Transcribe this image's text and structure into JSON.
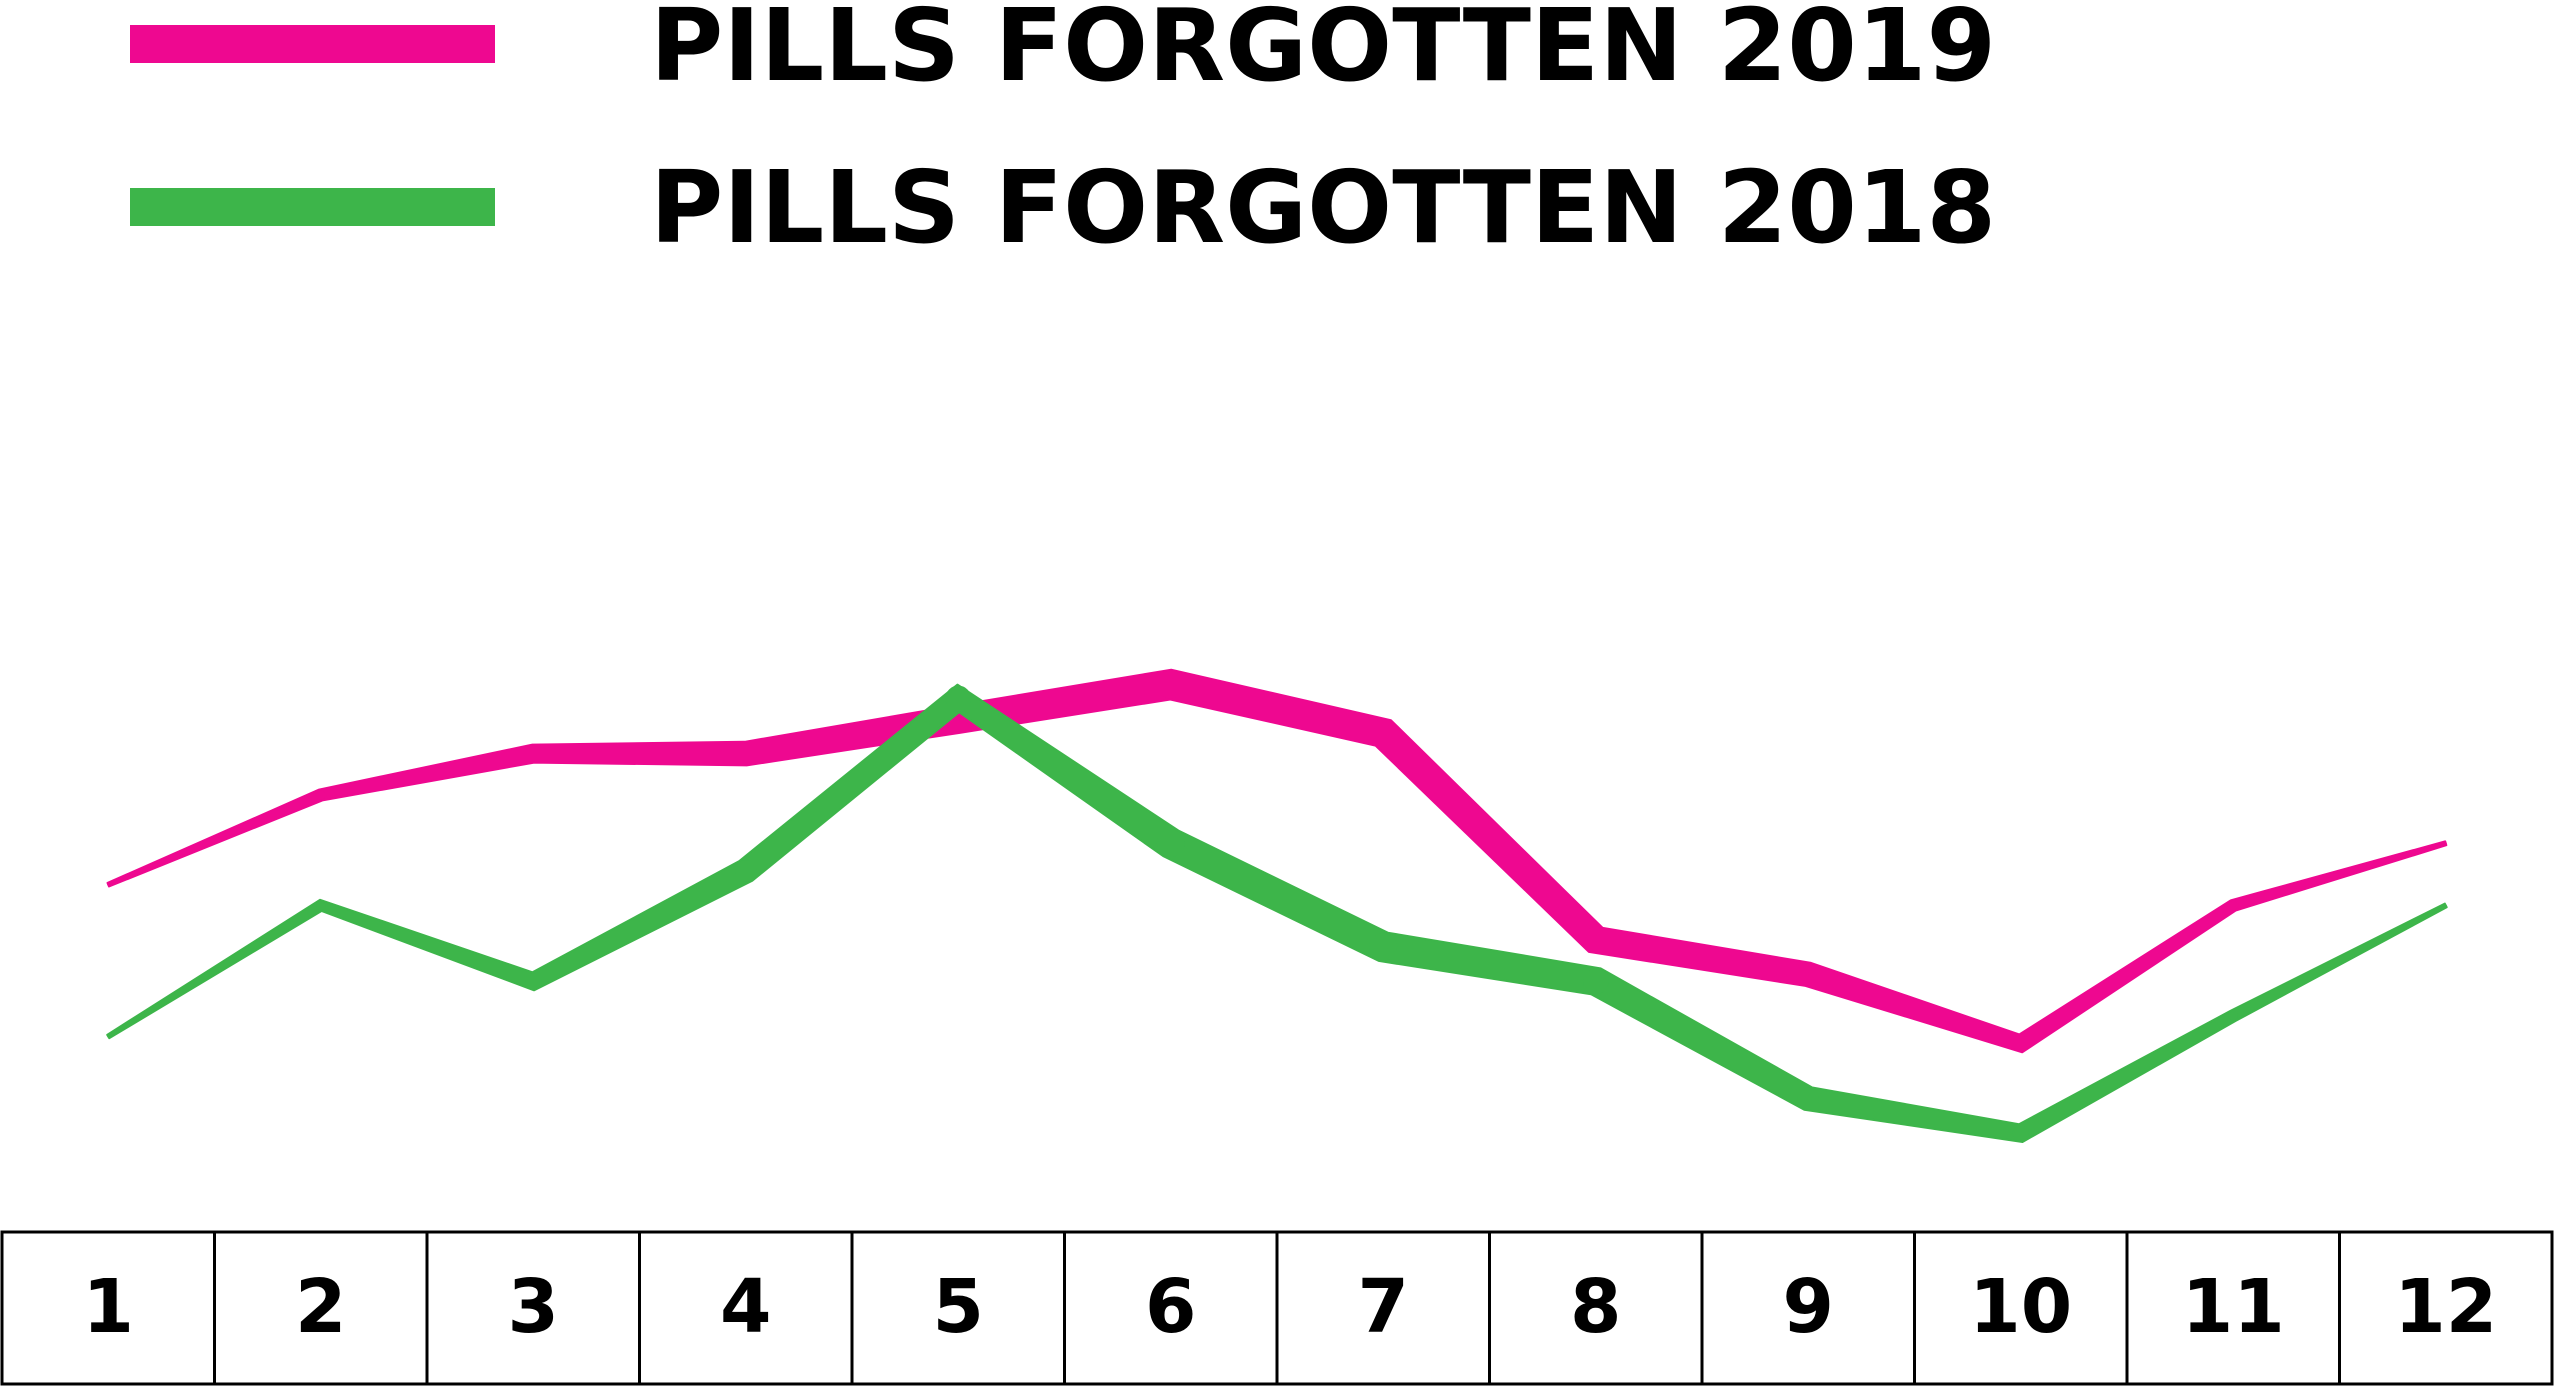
{
  "chart_data": {
    "type": "line",
    "title": "",
    "xlabel": "",
    "ylabel": "",
    "x": [
      1,
      2,
      3,
      4,
      5,
      6,
      7,
      8,
      9,
      10,
      11,
      12
    ],
    "categories": [
      "1",
      "2",
      "3",
      "4",
      "5",
      "6",
      "7",
      "8",
      "9",
      "10",
      "11",
      "12"
    ],
    "ylim": [
      0,
      100
    ],
    "grid": false,
    "legend": "top-left",
    "series": [
      {
        "name": "PILLS FORGOTTEN 2019",
        "color": "#EE0890",
        "values": [
          37,
          50,
          56,
          56,
          61,
          66,
          59,
          29,
          24,
          14,
          34,
          43
        ]
      },
      {
        "name": "PILLS FORGOTTEN 2018",
        "color": "#3DB54A",
        "values": [
          15,
          34,
          23,
          39,
          64,
          43,
          28,
          23,
          6,
          1,
          18,
          34
        ]
      }
    ]
  }
}
